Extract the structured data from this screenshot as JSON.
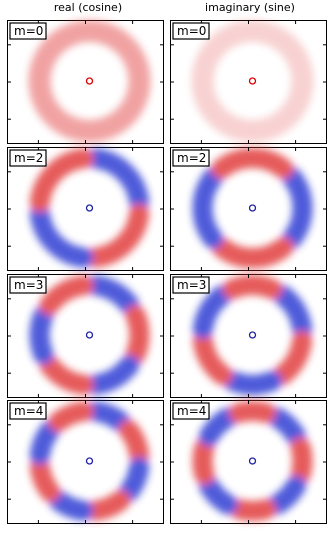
{
  "columns": [
    "real (cosine)",
    "imaginary (sine)"
  ],
  "panels": [
    [
      "m=0",
      "m=0"
    ],
    [
      "m=2",
      "m=2"
    ],
    [
      "m=3",
      "m=3"
    ],
    [
      "m=4",
      "m=4"
    ]
  ]
}
